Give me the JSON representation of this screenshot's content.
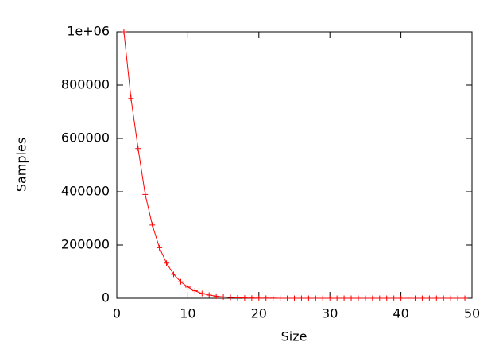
{
  "chart_data": {
    "type": "line",
    "xlabel": "Size",
    "ylabel": "Samples",
    "x": [
      1,
      2,
      3,
      4,
      5,
      6,
      7,
      8,
      9,
      10,
      11,
      12,
      13,
      14,
      15,
      16,
      17,
      18,
      19,
      20,
      21,
      22,
      23,
      24,
      25,
      26,
      27,
      28,
      29,
      30,
      31,
      32,
      33,
      34,
      35,
      36,
      37,
      38,
      39,
      40,
      41,
      42,
      43,
      44,
      45,
      46,
      47,
      48,
      49
    ],
    "series": [
      {
        "color": "#ff0000",
        "values": [
          1000000,
          750000,
          562000,
          390000,
          275000,
          190000,
          132000,
          90000,
          62000,
          42000,
          28000,
          18000,
          12000,
          8000,
          5000,
          3000,
          2000,
          1000,
          700,
          400,
          300,
          200,
          100,
          50,
          30,
          20,
          10,
          5,
          3,
          2,
          1,
          0,
          0,
          0,
          0,
          0,
          0,
          0,
          0,
          0,
          0,
          0,
          0,
          0,
          0,
          0,
          0,
          0,
          0
        ]
      }
    ],
    "xlim": [
      0,
      50
    ],
    "xticks": [
      0,
      10,
      20,
      30,
      40,
      50
    ],
    "ylim": [
      0,
      1000000
    ],
    "yticks": [
      0,
      200000,
      400000,
      600000,
      800000,
      {
        "value": 1000000,
        "label": "1e+06"
      }
    ],
    "grid": false
  }
}
